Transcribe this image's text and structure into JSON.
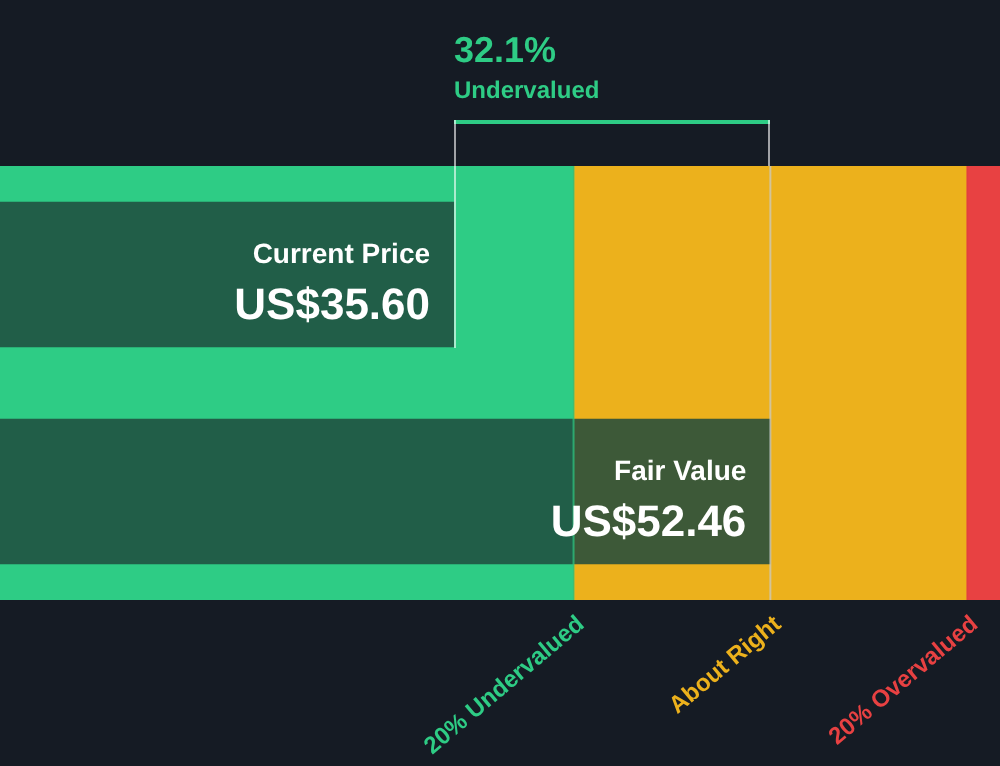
{
  "chart_data": {
    "type": "bar",
    "orientation": "horizontal",
    "categories": [
      "Current Price",
      "Fair Value"
    ],
    "series": [
      {
        "color": "#1e4a3d",
        "values": [
          35.6,
          52.46
        ],
        "value_labels": [
          "US$35.60",
          "US$52.46"
        ]
      }
    ],
    "xlim": [
      11.4,
      64.7
    ],
    "bands": [
      {
        "axis": "x",
        "from": 11.4,
        "to": 41.97,
        "color": "#2ecc85"
      },
      {
        "axis": "x",
        "from": 41.97,
        "to": 62.95,
        "color": "#ecb11c"
      },
      {
        "axis": "x",
        "from": 62.95,
        "to": 64.7,
        "color": "#e84142"
      }
    ],
    "ref_lines": [
      {
        "axis": "x",
        "value": 41.97,
        "label": "20% Undervalued",
        "color": "#2ecc85"
      },
      {
        "axis": "x",
        "value": 52.46,
        "label": "About Right",
        "color": "#c9cccf"
      },
      {
        "axis": "x",
        "value": 62.95,
        "label": "20% Overvalued",
        "color": "#e84142"
      }
    ],
    "annotations": [
      "32.1%",
      "Undervalued"
    ],
    "legend": false
  }
}
